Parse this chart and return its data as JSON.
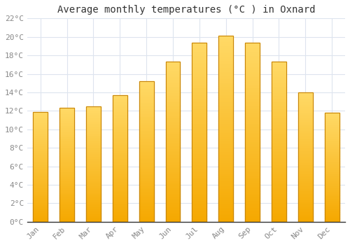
{
  "months": [
    "Jan",
    "Feb",
    "Mar",
    "Apr",
    "May",
    "Jun",
    "Jul",
    "Aug",
    "Sep",
    "Oct",
    "Nov",
    "Dec"
  ],
  "temperatures": [
    11.9,
    12.3,
    12.5,
    13.7,
    15.2,
    17.3,
    19.4,
    20.1,
    19.4,
    17.3,
    14.0,
    11.8
  ],
  "bar_color_bottom": "#F5A800",
  "bar_color_top": "#FFD966",
  "bar_edge_color": "#C8860A",
  "title": "Average monthly temperatures (°C ) in Oxnard",
  "ylim": [
    0,
    22
  ],
  "ytick_step": 2,
  "background_color": "#ffffff",
  "grid_color": "#dde4ee",
  "title_fontsize": 10,
  "tick_fontsize": 8,
  "tick_color": "#888888",
  "bar_width": 0.55
}
